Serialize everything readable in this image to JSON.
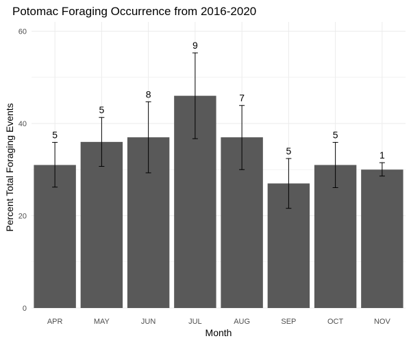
{
  "chart_data": {
    "type": "bar",
    "title": "Potomac Foraging Occurrence from 2016-2020",
    "xlabel": "Month",
    "ylabel": "Percent Total Foraging Events",
    "categories": [
      "APR",
      "MAY",
      "JUN",
      "JUL",
      "AUG",
      "SEP",
      "OCT",
      "NOV"
    ],
    "values": [
      31,
      36,
      37,
      46,
      37,
      27,
      31,
      30
    ],
    "error_low": [
      26.2,
      30.7,
      29.3,
      36.7,
      30.0,
      21.6,
      26.1,
      28.6
    ],
    "error_high": [
      35.9,
      41.3,
      44.7,
      55.3,
      43.9,
      32.4,
      35.9,
      31.5
    ],
    "count_labels": [
      "5",
      "5",
      "8",
      "9",
      "7",
      "5",
      "5",
      "1"
    ],
    "ylim": [
      0,
      62
    ],
    "yticks": [
      0,
      20,
      40,
      60
    ],
    "grid": true,
    "colors": {
      "bar": "#595959",
      "grid": "#ebebeb",
      "errorbar": "#000000"
    }
  }
}
